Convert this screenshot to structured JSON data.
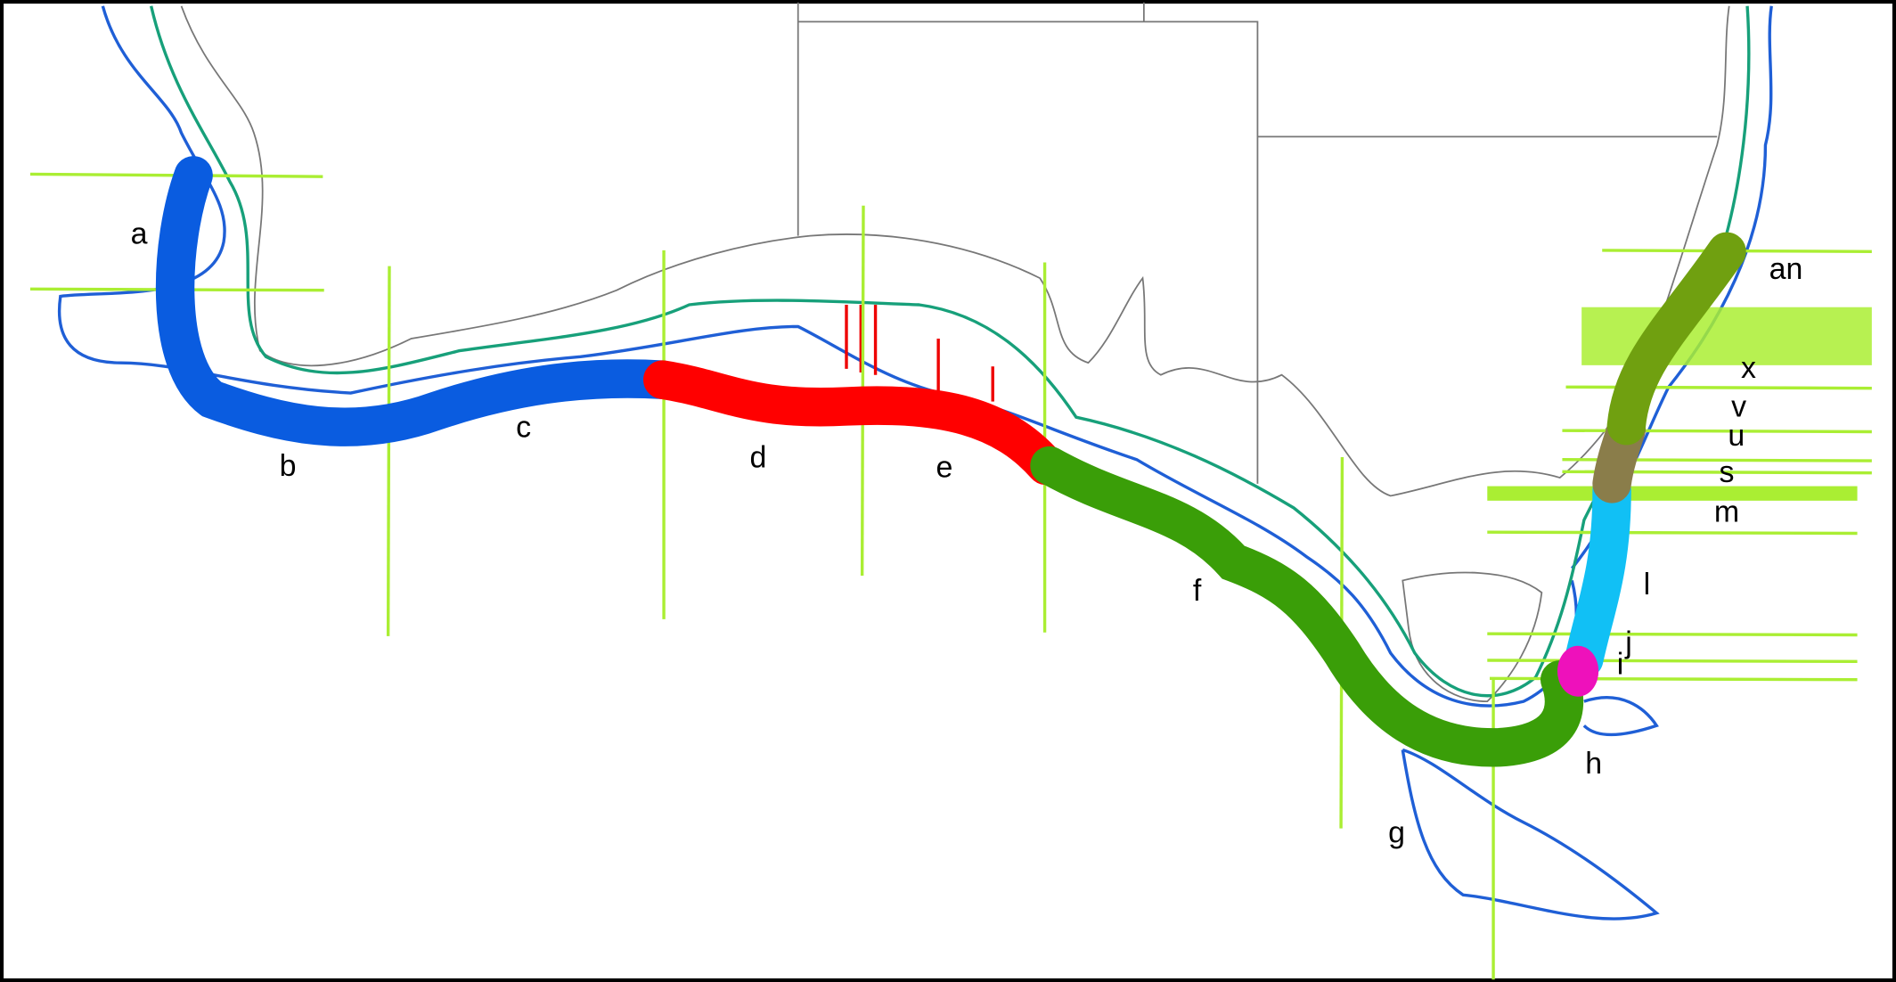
{
  "labels": [
    "a",
    "b",
    "c",
    "d",
    "e",
    "f",
    "g",
    "h",
    "i",
    "j",
    "l",
    "m",
    "s",
    "u",
    "v",
    "x",
    "an"
  ]
}
